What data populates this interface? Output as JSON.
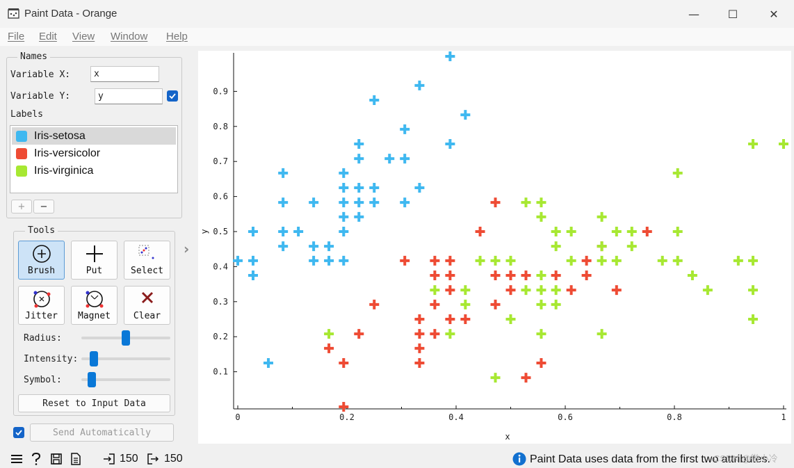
{
  "window": {
    "title": "Paint Data - Orange",
    "minimize_glyph": "—",
    "maximize_glyph": "☐",
    "close_glyph": "✕"
  },
  "menu": [
    "File",
    "Edit",
    "View",
    "Window",
    "Help"
  ],
  "names": {
    "group_title": "Names",
    "variable_x_label": "Variable X:",
    "variable_x_value": "x",
    "variable_y_label": "Variable Y:",
    "variable_y_value": "y",
    "variable_y_checked": true,
    "labels_title": "Labels",
    "labels": [
      {
        "name": "Iris-setosa",
        "color": "#3fb8f0",
        "selected": true
      },
      {
        "name": "Iris-versicolor",
        "color": "#ee4b34",
        "selected": false
      },
      {
        "name": "Iris-virginica",
        "color": "#a7e832",
        "selected": false
      }
    ],
    "add_label": "+",
    "remove_label": "−"
  },
  "tools": {
    "group_title": "Tools",
    "buttons": [
      {
        "label": "Brush",
        "icon": "brush-icon",
        "active": true
      },
      {
        "label": "Put",
        "icon": "put-icon",
        "active": false
      },
      {
        "label": "Select",
        "icon": "select-icon",
        "active": false
      },
      {
        "label": "Jitter",
        "icon": "jitter-icon",
        "active": false
      },
      {
        "label": "Magnet",
        "icon": "magnet-icon",
        "active": false
      },
      {
        "label": "Clear",
        "icon": "clear-icon",
        "active": false
      }
    ],
    "radius_label": "Radius:",
    "radius_level": 0.5,
    "intensity_label": "Intensity:",
    "intensity_level": 0.1,
    "symbol_label": "Symbol:",
    "symbol_level": 0.08,
    "reset_label": "Reset to Input Data"
  },
  "send": {
    "auto_checked": true,
    "label": "Send Automatically"
  },
  "status": {
    "input_count": "150",
    "output_count": "150",
    "message": "Paint Data uses data from the first two attributes.",
    "watermark": "CSDN @微小冷"
  },
  "chart_data": {
    "type": "scatter",
    "marker": "plus",
    "xlabel": "x",
    "ylabel": "y",
    "xlim": [
      0,
      1
    ],
    "ylim": [
      0,
      1
    ],
    "x_ticks": [
      "0",
      "0.2",
      "0.4",
      "0.6",
      "0.8",
      "1"
    ],
    "y_ticks": [
      "0.1",
      "0.2",
      "0.3",
      "0.4",
      "0.5",
      "0.6",
      "0.7",
      "0.8",
      "0.9"
    ],
    "series": [
      {
        "name": "Iris-setosa",
        "color": "#3fb8f0",
        "points": [
          [
            0.0,
            0.417
          ],
          [
            0.028,
            0.417
          ],
          [
            0.028,
            0.5
          ],
          [
            0.028,
            0.375
          ],
          [
            0.056,
            0.125
          ],
          [
            0.083,
            0.458
          ],
          [
            0.083,
            0.5
          ],
          [
            0.083,
            0.583
          ],
          [
            0.083,
            0.667
          ],
          [
            0.111,
            0.5
          ],
          [
            0.139,
            0.417
          ],
          [
            0.139,
            0.458
          ],
          [
            0.139,
            0.583
          ],
          [
            0.167,
            0.417
          ],
          [
            0.167,
            0.458
          ],
          [
            0.194,
            0.417
          ],
          [
            0.194,
            0.5
          ],
          [
            0.194,
            0.542
          ],
          [
            0.194,
            0.583
          ],
          [
            0.194,
            0.625
          ],
          [
            0.194,
            0.667
          ],
          [
            0.222,
            0.542
          ],
          [
            0.222,
            0.583
          ],
          [
            0.222,
            0.625
          ],
          [
            0.222,
            0.708
          ],
          [
            0.222,
            0.75
          ],
          [
            0.25,
            0.583
          ],
          [
            0.25,
            0.625
          ],
          [
            0.25,
            0.875
          ],
          [
            0.278,
            0.708
          ],
          [
            0.306,
            0.583
          ],
          [
            0.306,
            0.708
          ],
          [
            0.306,
            0.792
          ],
          [
            0.333,
            0.625
          ],
          [
            0.333,
            0.917
          ],
          [
            0.389,
            0.75
          ],
          [
            0.389,
            1.0
          ],
          [
            0.417,
            0.833
          ]
        ]
      },
      {
        "name": "Iris-versicolor",
        "color": "#ee4b34",
        "points": [
          [
            0.167,
            0.167
          ],
          [
            0.194,
            0.0
          ],
          [
            0.194,
            0.125
          ],
          [
            0.222,
            0.208
          ],
          [
            0.25,
            0.292
          ],
          [
            0.306,
            0.417
          ],
          [
            0.333,
            0.125
          ],
          [
            0.333,
            0.167
          ],
          [
            0.333,
            0.208
          ],
          [
            0.333,
            0.25
          ],
          [
            0.361,
            0.208
          ],
          [
            0.361,
            0.292
          ],
          [
            0.361,
            0.375
          ],
          [
            0.361,
            0.417
          ],
          [
            0.389,
            0.25
          ],
          [
            0.389,
            0.333
          ],
          [
            0.389,
            0.375
          ],
          [
            0.389,
            0.417
          ],
          [
            0.417,
            0.25
          ],
          [
            0.444,
            0.5
          ],
          [
            0.472,
            0.292
          ],
          [
            0.472,
            0.375
          ],
          [
            0.472,
            0.583
          ],
          [
            0.5,
            0.333
          ],
          [
            0.5,
            0.375
          ],
          [
            0.528,
            0.083
          ],
          [
            0.528,
            0.375
          ],
          [
            0.556,
            0.125
          ],
          [
            0.583,
            0.375
          ],
          [
            0.611,
            0.333
          ],
          [
            0.639,
            0.375
          ],
          [
            0.639,
            0.417
          ],
          [
            0.667,
            0.458
          ],
          [
            0.694,
            0.333
          ],
          [
            0.75,
            0.5
          ]
        ]
      },
      {
        "name": "Iris-virginica",
        "color": "#a7e832",
        "points": [
          [
            0.167,
            0.208
          ],
          [
            0.361,
            0.333
          ],
          [
            0.389,
            0.208
          ],
          [
            0.417,
            0.292
          ],
          [
            0.417,
            0.333
          ],
          [
            0.444,
            0.417
          ],
          [
            0.472,
            0.083
          ],
          [
            0.472,
            0.417
          ],
          [
            0.5,
            0.25
          ],
          [
            0.5,
            0.417
          ],
          [
            0.528,
            0.333
          ],
          [
            0.528,
            0.583
          ],
          [
            0.556,
            0.208
          ],
          [
            0.556,
            0.292
          ],
          [
            0.556,
            0.333
          ],
          [
            0.556,
            0.375
          ],
          [
            0.556,
            0.542
          ],
          [
            0.556,
            0.583
          ],
          [
            0.583,
            0.292
          ],
          [
            0.583,
            0.333
          ],
          [
            0.583,
            0.458
          ],
          [
            0.583,
            0.5
          ],
          [
            0.611,
            0.417
          ],
          [
            0.611,
            0.5
          ],
          [
            0.667,
            0.208
          ],
          [
            0.667,
            0.417
          ],
          [
            0.667,
            0.458
          ],
          [
            0.667,
            0.542
          ],
          [
            0.694,
            0.417
          ],
          [
            0.694,
            0.5
          ],
          [
            0.722,
            0.458
          ],
          [
            0.722,
            0.5
          ],
          [
            0.778,
            0.417
          ],
          [
            0.806,
            0.417
          ],
          [
            0.806,
            0.5
          ],
          [
            0.806,
            0.667
          ],
          [
            0.833,
            0.375
          ],
          [
            0.861,
            0.333
          ],
          [
            0.917,
            0.417
          ],
          [
            0.944,
            0.25
          ],
          [
            0.944,
            0.333
          ],
          [
            0.944,
            0.417
          ],
          [
            0.944,
            0.75
          ],
          [
            1.0,
            0.75
          ]
        ]
      }
    ]
  }
}
